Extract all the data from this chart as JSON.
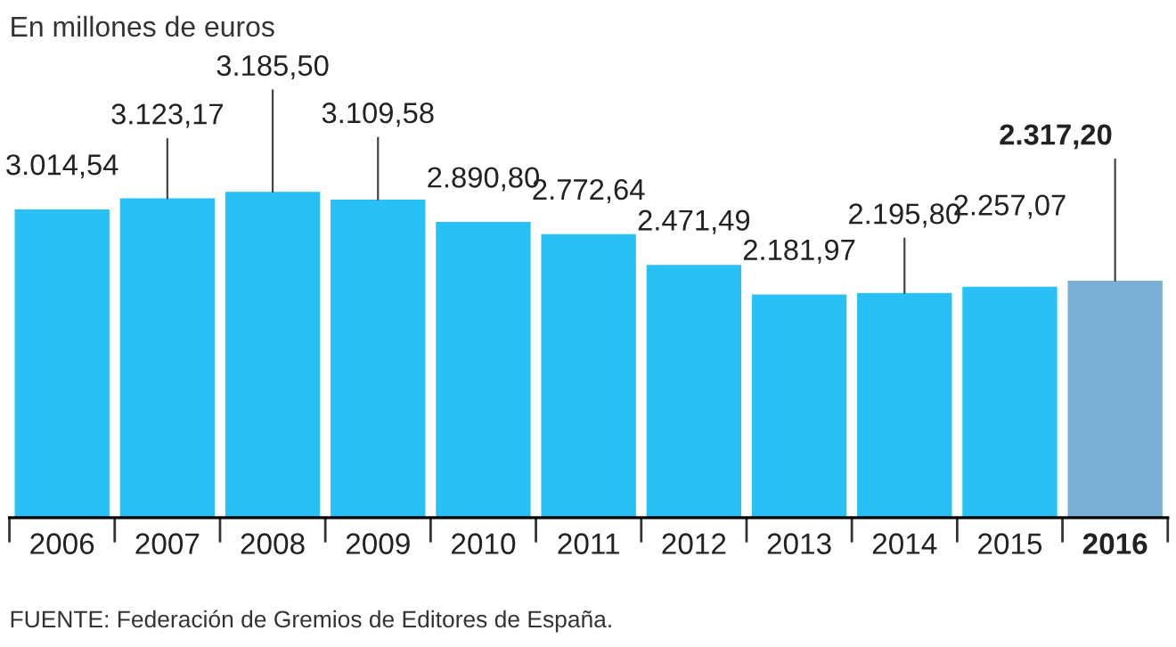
{
  "chart_data": {
    "type": "bar",
    "title": "En millones de euros",
    "categories": [
      "2006",
      "2007",
      "2008",
      "2009",
      "2010",
      "2011",
      "2012",
      "2013",
      "2014",
      "2015",
      "2016"
    ],
    "values": [
      3014.54,
      3123.17,
      3185.5,
      3109.58,
      2890.8,
      2772.64,
      2471.49,
      2181.97,
      2195.8,
      2257.07,
      2317.2
    ],
    "value_labels": [
      "3.014,54",
      "3.123,17",
      "3.185,50",
      "3.109,58",
      "2.890,80",
      "2.772,64",
      "2.471,49",
      "2.181,97",
      "2.195,80",
      "2.257,07",
      "2.317,20"
    ],
    "colors": [
      "#29c0f5",
      "#29c0f5",
      "#29c0f5",
      "#29c0f5",
      "#29c0f5",
      "#29c0f5",
      "#29c0f5",
      "#29c0f5",
      "#29c0f5",
      "#29c0f5",
      "#7aafd6"
    ],
    "relative": false,
    "grid": false,
    "legend": false,
    "annotations": [
      "FUENTE: Federación de Gremios de Editores de España."
    ]
  }
}
